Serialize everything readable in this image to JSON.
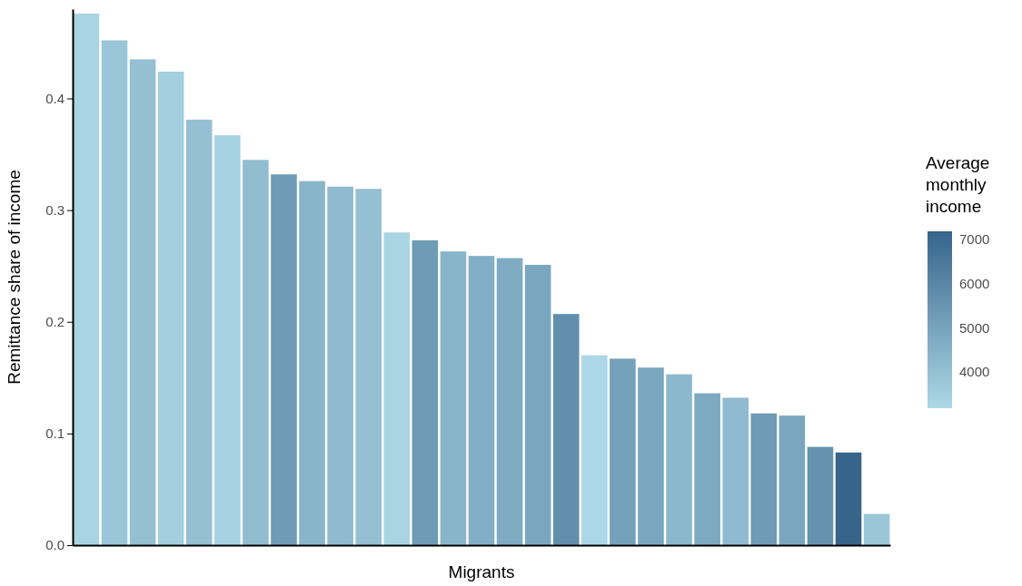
{
  "chart_data": {
    "type": "bar",
    "xlabel": "Migrants",
    "ylabel": "Remittance share of income",
    "clabel": "Average monthly income",
    "categories": [
      null,
      null,
      null,
      null,
      null,
      null,
      null,
      null,
      null,
      null,
      null,
      null,
      null,
      null,
      null,
      null,
      null,
      null,
      null,
      null,
      null,
      null,
      null,
      null,
      null,
      null,
      null,
      null,
      null
    ],
    "values": [
      0.476,
      0.452,
      0.435,
      0.424,
      0.381,
      0.367,
      0.345,
      0.332,
      0.326,
      0.321,
      0.319,
      0.28,
      0.273,
      0.263,
      0.259,
      0.257,
      0.251,
      0.207,
      0.17,
      0.167,
      0.159,
      0.153,
      0.136,
      0.132,
      0.118,
      0.116,
      0.088,
      0.083,
      0.028
    ],
    "cvalues": [
      3300,
      3800,
      4000,
      3500,
      4000,
      3400,
      4100,
      5300,
      4400,
      4200,
      4000,
      3300,
      5300,
      4400,
      4600,
      4700,
      4900,
      5700,
      3200,
      5100,
      4900,
      4300,
      4800,
      4200,
      5300,
      4900,
      5600,
      7180,
      3800
    ],
    "ylim": [
      0,
      0.48
    ],
    "yticks": [
      {
        "value": 0,
        "label": "0.0"
      },
      0.1,
      0.2,
      0.3,
      0.4
    ],
    "clim": [
      3180,
      7180
    ],
    "cticks": [
      4000,
      5000,
      6000,
      7000
    ],
    "grid": false
  }
}
